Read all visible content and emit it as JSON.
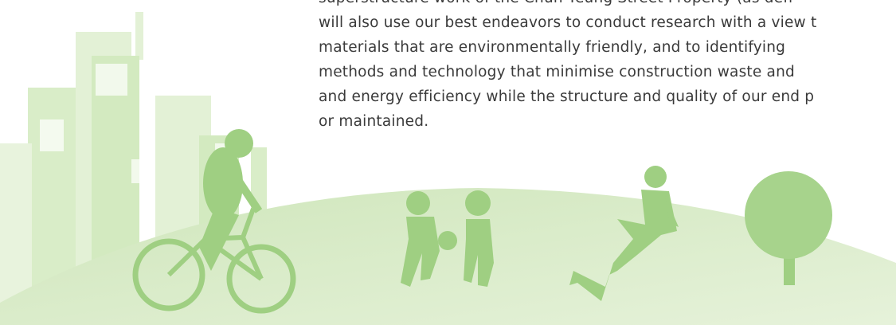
{
  "document": {
    "paragraph": {
      "lines": [
        "superstructure work of the Chun Yeung Street Property (as defi",
        "will also use our best endeavors to conduct research with a view t",
        "materials that are environmentally friendly, and to identifying",
        "methods and technology that minimise construction waste and",
        "and energy efficiency while the structure and quality of our end p",
        "or maintained."
      ]
    }
  }
}
